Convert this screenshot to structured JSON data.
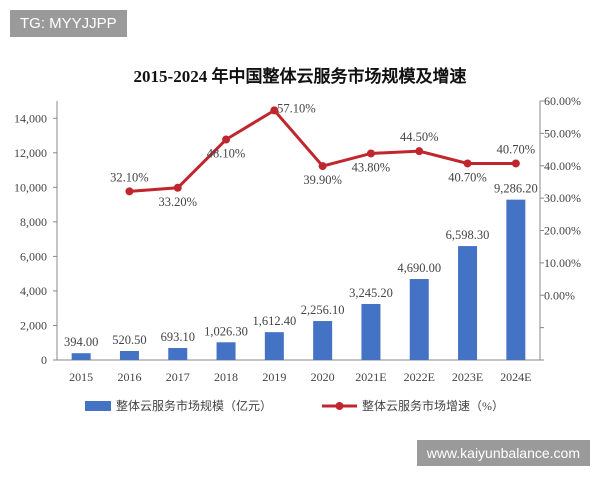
{
  "watermarks": {
    "top_left": "TG: MYYJJPP",
    "bottom_right": "www.kaiyunbalance.com"
  },
  "chart_data": {
    "type": "bar+line",
    "title": "2015-2024 年中国整体云服务市场规模及增速",
    "categories": [
      "2015",
      "2016",
      "2017",
      "2018",
      "2019",
      "2020",
      "2021E",
      "2022E",
      "2023E",
      "2024E"
    ],
    "series": [
      {
        "name": "整体云服务市场规模（亿元）",
        "type": "bar",
        "axis": "left",
        "color": "#4472c4",
        "values": [
          394.0,
          520.5,
          693.1,
          1026.3,
          1612.4,
          2256.1,
          3245.2,
          4690.0,
          6598.3,
          9286.2
        ],
        "labels": [
          "394.00",
          "520.50",
          "693.10",
          "1,026.30",
          "1,612.40",
          "2,256.10",
          "3,245.20",
          "4,690.00",
          "6,598.30",
          "9,286.20"
        ]
      },
      {
        "name": "整体云服务市场增速（%）",
        "type": "line",
        "axis": "right",
        "color": "#c0262d",
        "values": [
          null,
          32.1,
          33.2,
          48.1,
          57.1,
          39.9,
          43.8,
          44.5,
          40.7,
          40.7
        ],
        "labels": [
          "",
          "32.10%",
          "33.20%",
          "48.10%",
          "57.10%",
          "39.90%",
          "43.80%",
          "44.50%",
          "40.70%",
          "40.70%"
        ]
      }
    ],
    "y_left": {
      "ylim": [
        0,
        15000
      ],
      "ticks": [
        0,
        2000,
        4000,
        6000,
        8000,
        10000,
        12000,
        14000
      ],
      "tick_labels": [
        "0",
        "2,000",
        "4,000",
        "6,000",
        "8,000",
        "10,000",
        "12,000",
        "14,000"
      ]
    },
    "y_right": {
      "ylim": [
        -20,
        60
      ],
      "ticks": [
        0,
        10,
        20,
        30,
        40,
        50,
        60
      ],
      "tick_labels": [
        "0.00%",
        "10.00%",
        "20.00%",
        "30.00%",
        "40.00%",
        "50.00%",
        "60.00%"
      ]
    },
    "grid": false,
    "legend": "bottom"
  }
}
